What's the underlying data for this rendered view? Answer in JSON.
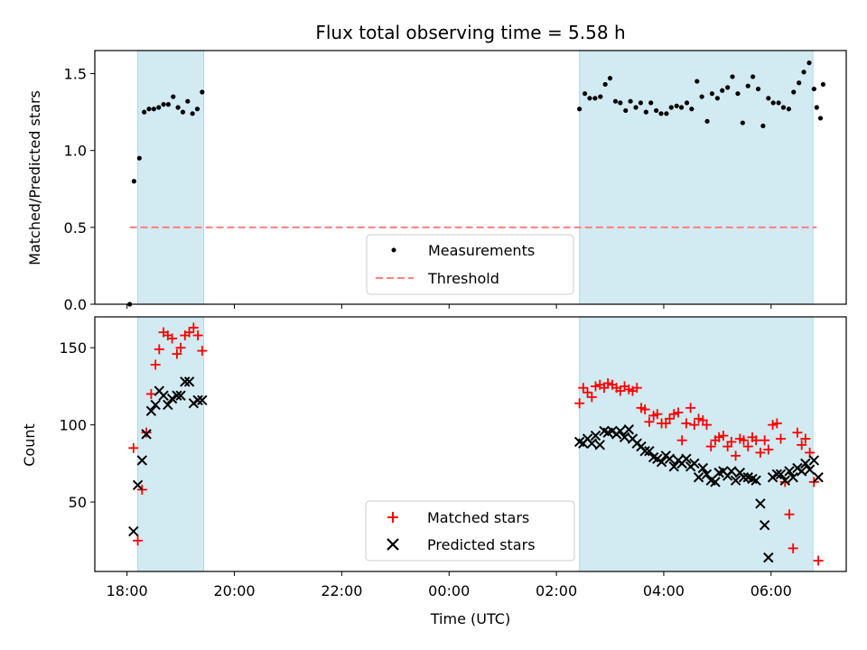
{
  "chart_data": [
    {
      "type": "scatter",
      "title": "Flux total observing time = 5.58 h",
      "xlabel": "",
      "ylabel": "Matched/Predicted stars",
      "xlim": [
        17.4,
        31.4
      ],
      "ylim": [
        0,
        1.65
      ],
      "yticks": [
        0,
        0.5,
        1.0,
        1.5
      ],
      "ytick_labels": [
        "0.0",
        "0.5",
        "1.0",
        "1.5"
      ],
      "shaded_intervals": [
        [
          18.2,
          19.43
        ],
        [
          26.43,
          30.78
        ]
      ],
      "shade_color": "#add8e6",
      "threshold": 0.5,
      "threshold_color": "#ff7f7f",
      "legend": {
        "position": "bottom-center",
        "entries": [
          "Measurements",
          "Threshold"
        ]
      },
      "series": [
        {
          "name": "Measurements",
          "marker": "dot",
          "color": "#000000",
          "x": [
            18.13,
            18.23,
            18.32,
            18.41,
            18.5,
            18.59,
            18.68,
            18.77,
            18.86,
            18.95,
            19.04,
            19.13,
            19.22,
            19.31,
            19.4,
            26.43,
            26.53,
            26.62,
            26.72,
            26.82,
            26.91,
            27.0,
            27.1,
            27.19,
            27.29,
            27.38,
            27.48,
            27.57,
            27.67,
            27.76,
            27.86,
            27.95,
            28.05,
            28.14,
            28.24,
            28.33,
            28.43,
            28.52,
            28.62,
            28.71,
            28.81,
            28.9,
            29.0,
            29.09,
            29.19,
            29.28,
            29.38,
            29.47,
            29.57,
            29.66,
            29.76,
            29.85,
            29.95,
            30.04,
            30.14,
            30.23,
            30.33,
            30.42,
            30.52,
            30.61,
            30.71,
            30.8
          ],
          "y": [
            0.8,
            0.95,
            1.25,
            1.27,
            1.27,
            1.28,
            1.3,
            1.3,
            1.35,
            1.28,
            1.25,
            1.32,
            1.24,
            1.27,
            1.38,
            1.27,
            1.37,
            1.34,
            1.34,
            1.35,
            1.43,
            1.47,
            1.32,
            1.31,
            1.26,
            1.32,
            1.28,
            1.31,
            1.25,
            1.31,
            1.26,
            1.24,
            1.24,
            1.28,
            1.29,
            1.28,
            1.31,
            1.27,
            1.45,
            1.35,
            1.19,
            1.37,
            1.34,
            1.39,
            1.41,
            1.48,
            1.37,
            1.18,
            1.42,
            1.48,
            1.4,
            1.16,
            1.34,
            1.31,
            1.31,
            1.28,
            1.27,
            1.38,
            1.44,
            1.51,
            1.57,
            1.4
          ]
        },
        {
          "name": "",
          "marker": "dot",
          "color": "#000000",
          "x": [
            18.05,
            30.85,
            30.92,
            30.97
          ],
          "y": [
            0.0,
            1.28,
            1.21,
            1.43
          ]
        }
      ]
    },
    {
      "type": "scatter",
      "title": "",
      "xlabel": "Time (UTC)",
      "ylabel": "Count",
      "xlim": [
        17.4,
        31.4
      ],
      "ylim": [
        5,
        170
      ],
      "yticks": [
        50,
        100,
        150
      ],
      "ytick_labels": [
        "50",
        "100",
        "150"
      ],
      "xticks": [
        18,
        20,
        22,
        24,
        26,
        28,
        30
      ],
      "xtick_labels": [
        "18:00",
        "20:00",
        "22:00",
        "00:00",
        "02:00",
        "04:00",
        "06:00"
      ],
      "shaded_intervals": [
        [
          18.2,
          19.43
        ],
        [
          26.43,
          30.78
        ]
      ],
      "shade_color": "#add8e6",
      "legend": {
        "position": "bottom-center",
        "entries": [
          "Matched stars",
          "Predicted stars"
        ]
      },
      "series": [
        {
          "name": "Matched stars",
          "marker": "plus",
          "color": "#ff0000",
          "x": [
            18.12,
            18.2,
            18.28,
            18.36,
            18.45,
            18.53,
            18.6,
            18.68,
            18.76,
            18.84,
            18.93,
            19.0,
            19.08,
            19.16,
            19.24,
            19.32,
            19.4,
            26.43,
            26.5,
            26.58,
            26.66,
            26.73,
            26.81,
            26.89,
            26.96,
            27.04,
            27.12,
            27.19,
            27.27,
            27.35,
            27.42,
            27.5,
            27.58,
            27.65,
            27.73,
            27.81,
            27.88,
            27.96,
            28.04,
            28.11,
            28.19,
            28.27,
            28.34,
            28.42,
            28.5,
            28.57,
            28.65,
            28.73,
            28.8,
            28.88,
            28.96,
            29.03,
            29.11,
            29.19,
            29.26,
            29.34,
            29.42,
            29.49,
            29.57,
            29.65,
            29.72,
            29.8,
            29.88,
            29.95,
            30.03,
            30.11,
            30.18,
            30.26,
            30.34,
            30.41,
            30.49,
            30.57,
            30.64,
            30.72,
            30.8,
            30.88
          ],
          "y": [
            85,
            25,
            58,
            95,
            120,
            139,
            149,
            160,
            158,
            156,
            146,
            150,
            158,
            160,
            163,
            158,
            148,
            114,
            124,
            121,
            118,
            125,
            126,
            124,
            127,
            126,
            124,
            122,
            125,
            123,
            122,
            124,
            111,
            110,
            102,
            106,
            107,
            101,
            101,
            104,
            107,
            108,
            90,
            101,
            111,
            100,
            104,
            103,
            100,
            86,
            90,
            92,
            93,
            86,
            89,
            80,
            91,
            90,
            86,
            92,
            90,
            82,
            90,
            84,
            100,
            101,
            91,
            63,
            42,
            20,
            95,
            87,
            91,
            82,
            63,
            12
          ],
          "note_hidden": false
        },
        {
          "name": "Predicted stars",
          "marker": "x",
          "color": "#000000",
          "x": [
            18.12,
            18.2,
            18.28,
            18.36,
            18.45,
            18.53,
            18.6,
            18.68,
            18.76,
            18.84,
            18.93,
            19.0,
            19.08,
            19.16,
            19.24,
            19.32,
            19.4,
            26.43,
            26.5,
            26.58,
            26.66,
            26.73,
            26.81,
            26.89,
            26.96,
            27.04,
            27.12,
            27.19,
            27.27,
            27.35,
            27.42,
            27.5,
            27.58,
            27.65,
            27.73,
            27.81,
            27.88,
            27.96,
            28.04,
            28.11,
            28.19,
            28.27,
            28.34,
            28.42,
            28.5,
            28.57,
            28.65,
            28.73,
            28.8,
            28.88,
            28.96,
            29.03,
            29.11,
            29.19,
            29.26,
            29.34,
            29.42,
            29.49,
            29.57,
            29.65,
            29.72,
            29.8,
            29.88,
            29.95,
            30.03,
            30.11,
            30.18,
            30.26,
            30.34,
            30.41,
            30.49,
            30.57,
            30.64,
            30.72,
            30.8,
            30.88
          ],
          "y": [
            31,
            61,
            77,
            94,
            109,
            113,
            122,
            119,
            113,
            117,
            119,
            119,
            128,
            128,
            114,
            116,
            116,
            89,
            88,
            91,
            88,
            93,
            87,
            96,
            95,
            96,
            94,
            96,
            92,
            97,
            91,
            88,
            86,
            83,
            83,
            79,
            78,
            76,
            80,
            78,
            73,
            77,
            75,
            78,
            73,
            75,
            66,
            72,
            68,
            64,
            63,
            69,
            70,
            67,
            70,
            64,
            69,
            66,
            66,
            65,
            64,
            49,
            35,
            14,
            66,
            68,
            68,
            64,
            70,
            66,
            72,
            70,
            75,
            71,
            77,
            66
          ]
        }
      ]
    }
  ]
}
